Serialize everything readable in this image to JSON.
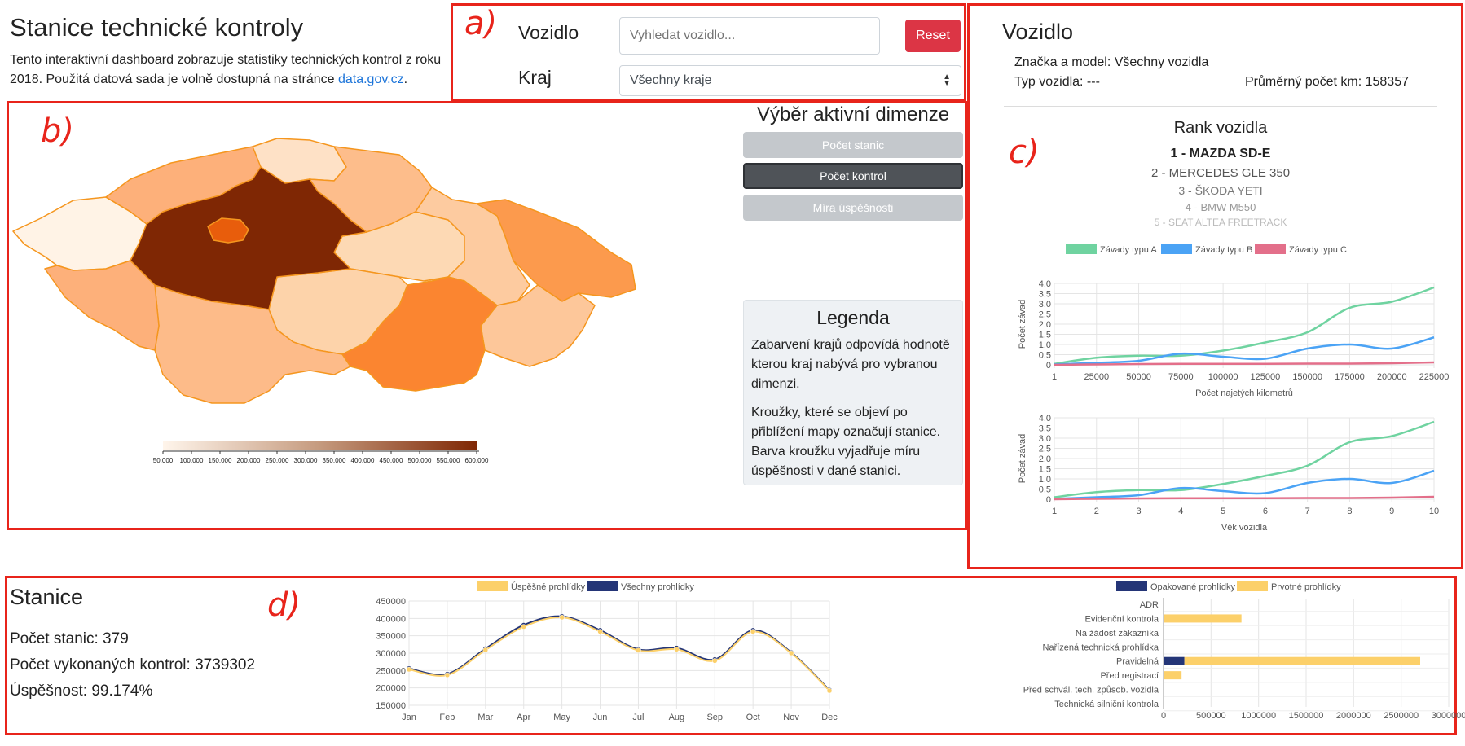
{
  "header": {
    "title": "Stanice technické kontroly",
    "intro": "Tento interaktivní dashboard zobrazuje statistiky technických kontrol z roku 2018. Použitá datová sada je volně dostupná na stránce",
    "link_text": "data.gov.cz",
    "intro_end": "."
  },
  "annotations": {
    "a": "a)",
    "b": "b)",
    "c": "c)",
    "d": "d)"
  },
  "filters": {
    "vehicle_label": "Vozidlo",
    "vehicle_placeholder": "Vyhledat vozidlo...",
    "region_label": "Kraj",
    "region_value": "Všechny kraje",
    "reset_label": "Reset"
  },
  "dimension": {
    "title": "Výběr aktivní dimenze",
    "buttons": [
      "Počet stanic",
      "Počet kontrol",
      "Míra úspěšnosti"
    ],
    "active": "Počet kontrol"
  },
  "legend": {
    "title": "Legenda",
    "p1": "Zabarvení krajů odpovídá hodnotě kterou kraj nabývá pro vybranou dimenzi.",
    "p2": "Kroužky, které se objeví po přiblížení mapy označují stanice. Barva kroužku vyjadřuje míru úspěšnosti v dané stanici."
  },
  "map": {
    "scale_ticks": [
      "50,000",
      "100,000",
      "150,000",
      "200,000",
      "250,000",
      "300,000",
      "350,000",
      "400,000",
      "450,000",
      "500,000",
      "550,000",
      "600,000"
    ],
    "colors": {
      "low": "#fff5eb",
      "high": "#7f2704",
      "border": "#f5961e"
    }
  },
  "vehicle": {
    "title": "Vozidlo",
    "make_model": "Značka a model: Všechny vozidla",
    "type": "Typ vozidla: ---",
    "avg_km": "Průměrný počet km: 158357",
    "rank_title": "Rank vozidla",
    "rank": [
      "1 - MAZDA SD-E",
      "2 - MERCEDES GLE 350",
      "3 - ŠKODA YETI",
      "4 - BMW M550",
      "5 - SEAT ALTEA FREETRACK"
    ]
  },
  "stations": {
    "title": "Stanice",
    "count": "Počet stanic: 379",
    "inspections": "Počet vykonaných kontrol: 3739302",
    "success": "Úspěšnost: 99.174%"
  },
  "chart_data": [
    {
      "type": "line",
      "legend": [
        "Závady typu A",
        "Závady typu B",
        "Závady typu C"
      ],
      "xlabel": "Počet najetých kilometrů",
      "ylabel": "Počet závad",
      "x_ticks": [
        "1",
        "25000",
        "50000",
        "75000",
        "100000",
        "125000",
        "150000",
        "175000",
        "200000",
        "225000"
      ],
      "ylim": [
        0,
        4.0
      ],
      "y_ticks": [
        "0",
        "0.5",
        "1.0",
        "1.5",
        "2.0",
        "2.5",
        "3.0",
        "3.5",
        "4.0"
      ],
      "x": [
        1,
        25000,
        50000,
        75000,
        100000,
        125000,
        150000,
        175000,
        200000,
        225000
      ],
      "series": [
        {
          "name": "Závady typu A",
          "color": "#6fd3a0",
          "values": [
            0.05,
            0.35,
            0.45,
            0.45,
            0.7,
            1.1,
            1.6,
            2.8,
            3.1,
            3.8
          ]
        },
        {
          "name": "Závady typu B",
          "color": "#4ba3f5",
          "values": [
            0.02,
            0.1,
            0.2,
            0.55,
            0.4,
            0.3,
            0.8,
            1.0,
            0.8,
            1.35
          ]
        },
        {
          "name": "Závady typu C",
          "color": "#e36f8a",
          "values": [
            0.0,
            0.02,
            0.04,
            0.05,
            0.05,
            0.05,
            0.06,
            0.06,
            0.08,
            0.12
          ]
        }
      ]
    },
    {
      "type": "line",
      "xlabel": "Věk vozidla",
      "ylabel": "Počet závad",
      "x_ticks": [
        "1",
        "2",
        "3",
        "4",
        "5",
        "6",
        "7",
        "8",
        "9",
        "10"
      ],
      "ylim": [
        0,
        4.0
      ],
      "y_ticks": [
        "0",
        "0.5",
        "1.0",
        "1.5",
        "2.0",
        "2.5",
        "3.0",
        "3.5",
        "4.0"
      ],
      "x": [
        1,
        2,
        3,
        4,
        5,
        6,
        7,
        8,
        9,
        10
      ],
      "series": [
        {
          "name": "Závady typu A",
          "color": "#6fd3a0",
          "values": [
            0.1,
            0.35,
            0.45,
            0.45,
            0.75,
            1.15,
            1.65,
            2.8,
            3.1,
            3.8
          ]
        },
        {
          "name": "Závady typu B",
          "color": "#4ba3f5",
          "values": [
            0.02,
            0.1,
            0.2,
            0.55,
            0.4,
            0.3,
            0.8,
            1.0,
            0.8,
            1.4
          ]
        },
        {
          "name": "Závady typu C",
          "color": "#e36f8a",
          "values": [
            0.0,
            0.02,
            0.04,
            0.05,
            0.05,
            0.05,
            0.06,
            0.06,
            0.08,
            0.12
          ]
        }
      ]
    },
    {
      "type": "line",
      "legend": [
        "Úspěšné prohlídky",
        "Všechny prohlídky"
      ],
      "categories": [
        "Jan",
        "Feb",
        "Mar",
        "Apr",
        "May",
        "Jun",
        "Jul",
        "Aug",
        "Sep",
        "Oct",
        "Nov",
        "Dec"
      ],
      "ylim": [
        150000,
        450000
      ],
      "y_ticks": [
        "150000",
        "200000",
        "250000",
        "300000",
        "350000",
        "400000",
        "450000"
      ],
      "series": [
        {
          "name": "Úspěšné prohlídky",
          "color": "#fcd06a",
          "values": [
            253000,
            237000,
            309000,
            376000,
            403000,
            362000,
            308000,
            311000,
            278000,
            362000,
            300000,
            192000
          ]
        },
        {
          "name": "Všechny prohlídky",
          "color": "#243577",
          "values": [
            256000,
            240000,
            313000,
            381000,
            406000,
            366000,
            311000,
            315000,
            282000,
            366000,
            302000,
            194000
          ]
        }
      ]
    },
    {
      "type": "bar",
      "legend": [
        "Opakované prohlídky",
        "Prvotné prohlídky"
      ],
      "categories": [
        "ADR",
        "Evidenční kontrola",
        "Na žádost zákazníka",
        "Nařízená technická prohlídka",
        "Pravidelná",
        "Před registrací",
        "Před schvál. tech. způsob. vozidla",
        "Technická silniční kontrola"
      ],
      "x_ticks": [
        "0",
        "500000",
        "1000000",
        "1500000",
        "2000000",
        "2500000",
        "3000000"
      ],
      "xlim": [
        0,
        3000000
      ],
      "series": [
        {
          "name": "Opakované prohlídky",
          "color": "#243577",
          "values": [
            0,
            0,
            0,
            0,
            220000,
            0,
            0,
            0
          ]
        },
        {
          "name": "Prvotné prohlídky",
          "color": "#fcd06a",
          "values": [
            0,
            820000,
            5000,
            0,
            2480000,
            190000,
            0,
            0
          ]
        }
      ]
    }
  ]
}
